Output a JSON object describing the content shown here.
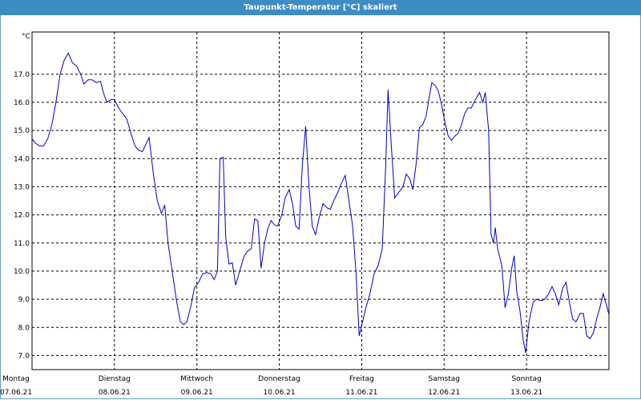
{
  "window": {
    "title": "Taupunkt-Temperatur [°C] skaliert"
  },
  "chart_data": {
    "type": "line",
    "title": "Taupunkt-Temperatur [°C] skaliert",
    "ylabel": "°C",
    "ylim": [
      6.5,
      18.5
    ],
    "yticks": [
      7.0,
      8.0,
      9.0,
      10.0,
      11.0,
      12.0,
      13.0,
      14.0,
      15.0,
      16.0,
      17.0
    ],
    "xlim": [
      0,
      7
    ],
    "days": [
      {
        "name": "Montag",
        "date": "07.06.21"
      },
      {
        "name": "Dienstag",
        "date": "08.06.21"
      },
      {
        "name": "Mittwoch",
        "date": "09.06.21"
      },
      {
        "name": "Donnerstag",
        "date": "10.06.21"
      },
      {
        "name": "Freitag",
        "date": "11.06.21"
      },
      {
        "name": "Samstag",
        "date": "12.06.21"
      },
      {
        "name": "Sonntag",
        "date": "13.06.21"
      }
    ],
    "grid": true,
    "series_color": "#0000cc",
    "series": [
      {
        "values": [
          [
            0.0,
            14.7
          ],
          [
            0.04,
            14.55
          ],
          [
            0.09,
            14.45
          ],
          [
            0.14,
            14.45
          ],
          [
            0.19,
            14.7
          ],
          [
            0.24,
            15.2
          ],
          [
            0.29,
            16.0
          ],
          [
            0.34,
            17.0
          ],
          [
            0.39,
            17.5
          ],
          [
            0.44,
            17.75
          ],
          [
            0.49,
            17.4
          ],
          [
            0.54,
            17.3
          ],
          [
            0.59,
            17.0
          ],
          [
            0.63,
            16.65
          ],
          [
            0.68,
            16.8
          ],
          [
            0.73,
            16.8
          ],
          [
            0.78,
            16.7
          ],
          [
            0.83,
            16.75
          ],
          [
            0.87,
            16.3
          ],
          [
            0.91,
            16.0
          ],
          [
            0.96,
            16.1
          ],
          [
            1.0,
            16.1
          ],
          [
            1.05,
            15.8
          ],
          [
            1.1,
            15.6
          ],
          [
            1.15,
            15.4
          ],
          [
            1.2,
            14.9
          ],
          [
            1.25,
            14.45
          ],
          [
            1.29,
            14.3
          ],
          [
            1.34,
            14.25
          ],
          [
            1.38,
            14.5
          ],
          [
            1.42,
            14.75
          ],
          [
            1.47,
            13.5
          ],
          [
            1.52,
            12.5
          ],
          [
            1.57,
            12.05
          ],
          [
            1.61,
            12.35
          ],
          [
            1.65,
            11.0
          ],
          [
            1.7,
            10.0
          ],
          [
            1.75,
            9.0
          ],
          [
            1.8,
            8.2
          ],
          [
            1.84,
            8.1
          ],
          [
            1.88,
            8.2
          ],
          [
            1.93,
            8.8
          ],
          [
            1.97,
            9.4
          ],
          [
            2.02,
            9.6
          ],
          [
            2.07,
            9.9
          ],
          [
            2.12,
            9.95
          ],
          [
            2.17,
            9.9
          ],
          [
            2.21,
            9.7
          ],
          [
            2.25,
            10.0
          ],
          [
            2.28,
            14.0
          ],
          [
            2.32,
            14.05
          ],
          [
            2.35,
            11.2
          ],
          [
            2.39,
            10.25
          ],
          [
            2.43,
            10.3
          ],
          [
            2.47,
            9.5
          ],
          [
            2.52,
            10.0
          ],
          [
            2.57,
            10.5
          ],
          [
            2.61,
            10.7
          ],
          [
            2.66,
            10.8
          ],
          [
            2.7,
            11.85
          ],
          [
            2.74,
            11.8
          ],
          [
            2.78,
            10.1
          ],
          [
            2.82,
            11.0
          ],
          [
            2.86,
            11.5
          ],
          [
            2.9,
            11.8
          ],
          [
            2.94,
            11.65
          ],
          [
            2.98,
            11.6
          ],
          [
            3.03,
            12.0
          ],
          [
            3.07,
            12.6
          ],
          [
            3.12,
            12.9
          ],
          [
            3.16,
            12.4
          ],
          [
            3.2,
            11.6
          ],
          [
            3.24,
            11.5
          ],
          [
            3.28,
            13.8
          ],
          [
            3.32,
            15.15
          ],
          [
            3.36,
            13.0
          ],
          [
            3.4,
            11.6
          ],
          [
            3.44,
            11.3
          ],
          [
            3.48,
            11.85
          ],
          [
            3.53,
            12.4
          ],
          [
            3.58,
            12.25
          ],
          [
            3.62,
            12.2
          ],
          [
            3.66,
            12.5
          ],
          [
            3.71,
            12.8
          ],
          [
            3.75,
            13.1
          ],
          [
            3.8,
            13.4
          ],
          [
            3.85,
            12.4
          ],
          [
            3.89,
            11.6
          ],
          [
            3.93,
            10.0
          ],
          [
            3.97,
            7.7
          ],
          [
            4.01,
            8.2
          ],
          [
            4.05,
            8.7
          ],
          [
            4.1,
            9.2
          ],
          [
            4.15,
            9.9
          ],
          [
            4.2,
            10.2
          ],
          [
            4.25,
            10.8
          ],
          [
            4.29,
            13.7
          ],
          [
            4.32,
            16.45
          ],
          [
            4.36,
            14.4
          ],
          [
            4.4,
            12.6
          ],
          [
            4.45,
            12.8
          ],
          [
            4.5,
            13.0
          ],
          [
            4.54,
            13.45
          ],
          [
            4.58,
            13.3
          ],
          [
            4.62,
            12.9
          ],
          [
            4.66,
            13.8
          ],
          [
            4.7,
            15.1
          ],
          [
            4.74,
            15.2
          ],
          [
            4.78,
            15.5
          ],
          [
            4.82,
            16.2
          ],
          [
            4.85,
            16.7
          ],
          [
            4.89,
            16.6
          ],
          [
            4.93,
            16.4
          ],
          [
            4.97,
            15.9
          ],
          [
            5.01,
            15.3
          ],
          [
            5.05,
            14.8
          ],
          [
            5.09,
            14.65
          ],
          [
            5.13,
            14.8
          ],
          [
            5.17,
            14.9
          ],
          [
            5.21,
            15.2
          ],
          [
            5.25,
            15.6
          ],
          [
            5.29,
            15.8
          ],
          [
            5.33,
            15.8
          ],
          [
            5.38,
            16.1
          ],
          [
            5.43,
            16.35
          ],
          [
            5.47,
            16.0
          ],
          [
            5.5,
            16.35
          ],
          [
            5.54,
            15.0
          ],
          [
            5.57,
            11.3
          ],
          [
            5.6,
            11.0
          ],
          [
            5.62,
            11.55
          ],
          [
            5.65,
            10.8
          ],
          [
            5.7,
            10.2
          ],
          [
            5.74,
            8.7
          ],
          [
            5.78,
            9.2
          ],
          [
            5.82,
            10.1
          ],
          [
            5.85,
            10.55
          ],
          [
            5.88,
            9.3
          ],
          [
            5.92,
            8.6
          ],
          [
            5.96,
            7.55
          ],
          [
            5.99,
            7.1
          ],
          [
            6.03,
            8.2
          ],
          [
            6.08,
            8.9
          ],
          [
            6.12,
            9.0
          ],
          [
            6.18,
            8.95
          ],
          [
            6.22,
            9.0
          ],
          [
            6.27,
            9.2
          ],
          [
            6.31,
            9.45
          ],
          [
            6.35,
            9.2
          ],
          [
            6.39,
            8.8
          ],
          [
            6.44,
            9.4
          ],
          [
            6.48,
            9.6
          ],
          [
            6.52,
            8.9
          ],
          [
            6.56,
            8.3
          ],
          [
            6.6,
            8.2
          ],
          [
            6.65,
            8.5
          ],
          [
            6.69,
            8.5
          ],
          [
            6.73,
            7.7
          ],
          [
            6.77,
            7.6
          ],
          [
            6.81,
            7.8
          ],
          [
            6.85,
            8.3
          ],
          [
            6.89,
            8.7
          ],
          [
            6.93,
            9.2
          ],
          [
            6.97,
            8.8
          ],
          [
            7.0,
            8.45
          ]
        ]
      }
    ]
  }
}
